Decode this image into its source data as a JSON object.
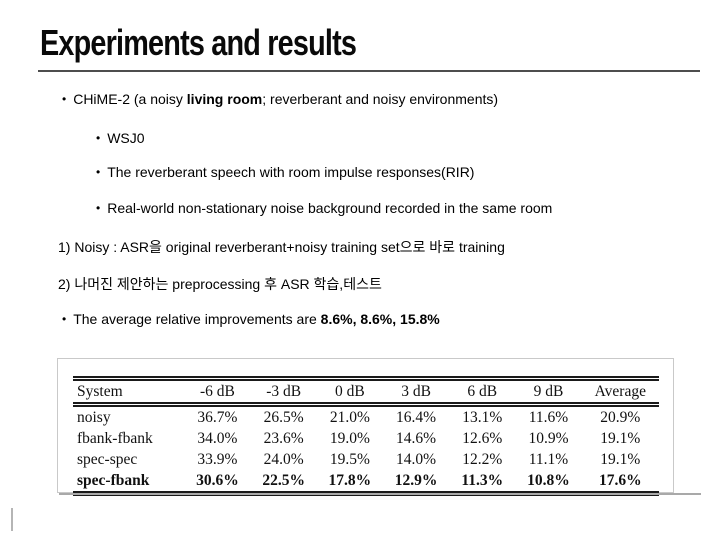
{
  "slide": {
    "title": "Experiments and results",
    "bullet": "•",
    "lines": {
      "chime": {
        "pre": "CHiME-2 (a noisy ",
        "bold": "living room",
        "post": "; reverberant and noisy environments)"
      },
      "wsj0": "WSJ0",
      "rir": "The reverberant speech with room impulse responses(RIR)",
      "noise": "Real-world non-stationary noise background recorded in the same room",
      "noisy_setup": "1) Noisy : ASR을 original reverberant+noisy training set으로 바로 training",
      "proposed_setup": "2) 나머진 제안하는 preprocessing 후 ASR 학습,테스트",
      "improvements": {
        "pre": "The average relative improvements are ",
        "bold": "8.6%, 8.6%, 15.8%"
      }
    }
  },
  "chart_data": {
    "type": "table",
    "title": "",
    "headers": [
      "System",
      "-6 dB",
      "-3 dB",
      "0 dB",
      "3 dB",
      "6 dB",
      "9 dB",
      "Average"
    ],
    "rows": [
      {
        "system": "noisy",
        "values": [
          "36.7%",
          "26.5%",
          "21.0%",
          "16.4%",
          "13.1%",
          "11.6%",
          "20.9%"
        ]
      },
      {
        "system": "fbank-fbank",
        "values": [
          "34.0%",
          "23.6%",
          "19.0%",
          "14.6%",
          "12.6%",
          "10.9%",
          "19.1%"
        ]
      },
      {
        "system": "spec-spec",
        "values": [
          "33.9%",
          "24.0%",
          "19.5%",
          "14.0%",
          "12.2%",
          "11.1%",
          "19.1%"
        ]
      },
      {
        "system": "spec-fbank",
        "values": [
          "30.6%",
          "22.5%",
          "17.8%",
          "12.9%",
          "11.3%",
          "10.8%",
          "17.6%"
        ]
      }
    ]
  }
}
